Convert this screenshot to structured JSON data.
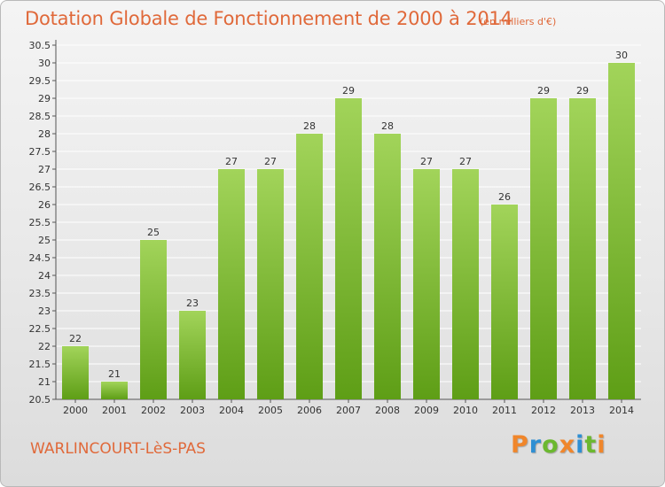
{
  "header": {
    "title": "Dotation Globale de Fonctionnement de 2000 à 2014",
    "subtitle": "(en milliers d'€)"
  },
  "footer": {
    "commune": "WARLINCOURT-LèS-PAS",
    "logo": "Proxiti"
  },
  "colors": {
    "bar_top": "#a2d45a",
    "bar_bottom": "#5e9e16",
    "title": "#e0693a",
    "logo": [
      "#f0862b",
      "#2f8fd3",
      "#6bb82f",
      "#f0862b",
      "#2f8fd3",
      "#6bb82f",
      "#f0862b"
    ]
  },
  "chart_data": {
    "type": "bar",
    "title": "Dotation Globale de Fonctionnement de 2000 à 2014",
    "subtitle": "(en milliers d'€)",
    "categories": [
      "2000",
      "2001",
      "2002",
      "2003",
      "2004",
      "2005",
      "2006",
      "2007",
      "2008",
      "2009",
      "2010",
      "2011",
      "2012",
      "2013",
      "2014"
    ],
    "values": [
      22,
      21,
      25,
      23,
      27,
      27,
      28,
      29,
      28,
      27,
      27,
      26,
      29,
      29,
      30
    ],
    "value_labels": [
      "22",
      "21",
      "25",
      "23",
      "27",
      "27",
      "28",
      "29",
      "28",
      "27",
      "27",
      "26",
      "29",
      "29",
      "30"
    ],
    "ylim": [
      20.5,
      30.5
    ],
    "yticks": [
      "20.5",
      "21",
      "21.5",
      "22",
      "22.5",
      "23",
      "23.5",
      "24",
      "24.5",
      "25",
      "25.5",
      "26",
      "26.5",
      "27",
      "27.5",
      "28",
      "28.5",
      "29",
      "29.5",
      "30",
      "30.5"
    ],
    "grid": true,
    "legend": "none"
  }
}
